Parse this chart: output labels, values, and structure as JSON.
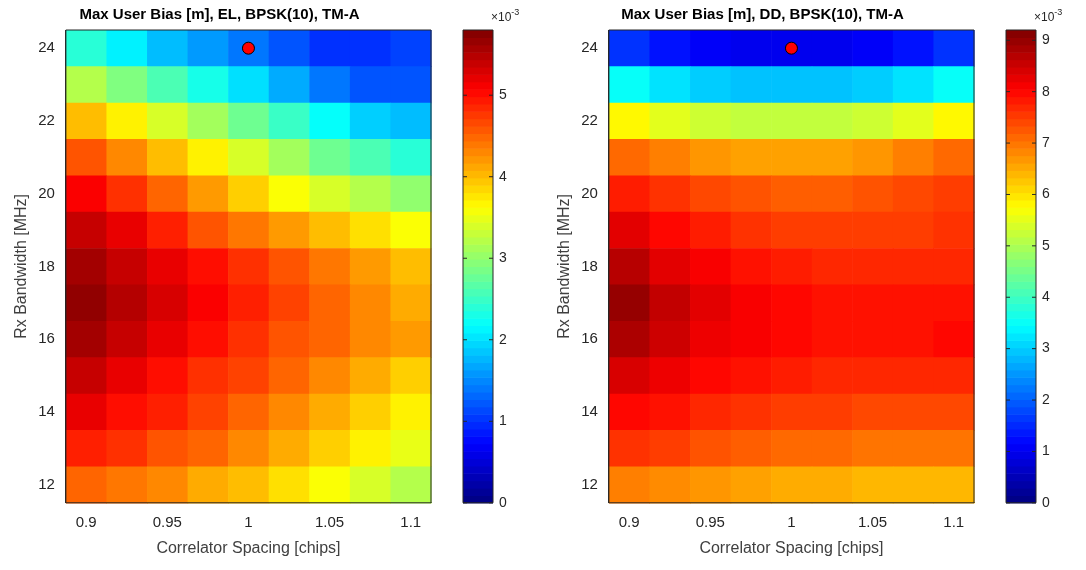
{
  "chart_data": [
    {
      "type": "heatmap",
      "title": "Max User Bias [m], EL, BPSK(10), TM-A",
      "xlabel": "Correlator Spacing [chips]",
      "ylabel": "Rx Bandwidth [MHz]",
      "x": [
        0.9,
        0.925,
        0.95,
        0.975,
        1,
        1.025,
        1.05,
        1.075,
        1.1
      ],
      "y": [
        24,
        23,
        22,
        21,
        20,
        19,
        18,
        17,
        16,
        15,
        14,
        13,
        12
      ],
      "cells": [
        [
          2.4,
          2.1,
          1.8,
          1.6,
          1.4,
          1.2,
          1.0,
          1.0,
          1.1
        ],
        [
          3.2,
          2.9,
          2.6,
          2.3,
          2.0,
          1.7,
          1.4,
          1.2,
          1.2
        ],
        [
          4.0,
          3.7,
          3.4,
          3.1,
          2.8,
          2.5,
          2.2,
          1.9,
          1.8
        ],
        [
          4.6,
          4.3,
          4.0,
          3.7,
          3.4,
          3.1,
          2.8,
          2.6,
          2.4
        ],
        [
          5.1,
          4.8,
          4.5,
          4.2,
          3.9,
          3.6,
          3.4,
          3.2,
          3.0
        ],
        [
          5.4,
          5.2,
          4.9,
          4.6,
          4.4,
          4.2,
          4.0,
          3.8,
          3.6
        ],
        [
          5.6,
          5.4,
          5.2,
          5.0,
          4.8,
          4.6,
          4.4,
          4.2,
          4.0
        ],
        [
          5.7,
          5.5,
          5.3,
          5.1,
          4.9,
          4.7,
          4.5,
          4.3,
          4.1
        ],
        [
          5.6,
          5.4,
          5.2,
          5.0,
          4.8,
          4.6,
          4.5,
          4.3,
          4.2
        ],
        [
          5.4,
          5.2,
          5.0,
          4.8,
          4.7,
          4.5,
          4.3,
          4.1,
          3.9
        ],
        [
          5.2,
          5.0,
          4.9,
          4.7,
          4.5,
          4.3,
          4.1,
          3.9,
          3.7
        ],
        [
          4.9,
          4.8,
          4.6,
          4.5,
          4.3,
          4.1,
          3.9,
          3.7,
          3.5
        ],
        [
          4.5,
          4.4,
          4.3,
          4.1,
          4.0,
          3.8,
          3.6,
          3.4,
          3.2
        ]
      ],
      "xlim": [
        0.8875,
        1.1125
      ],
      "xticks": [
        0.9,
        0.95,
        1,
        1.05,
        1.1
      ],
      "ylim": [
        11.5,
        24.5
      ],
      "yticks": [
        12,
        14,
        16,
        18,
        20,
        22,
        24
      ],
      "clim": [
        0,
        5.8
      ],
      "cticks": [
        0,
        1,
        2,
        3,
        4,
        5
      ],
      "annotations": [
        "×10$^{-3}$"
      ],
      "series": [
        {
          "type": "scatter",
          "x": [
            1
          ],
          "values": [
            24
          ],
          "color": "#ff0000"
        }
      ],
      "marker": "circle"
    },
    {
      "type": "heatmap",
      "title": "Max User Bias [m], DD, BPSK(10), TM-A",
      "xlabel": "Correlator Spacing [chips]",
      "ylabel": "Rx Bandwidth [MHz]",
      "x": [
        0.9,
        0.925,
        0.95,
        0.975,
        1,
        1.025,
        1.05,
        1.075,
        1.1
      ],
      "y": [
        24,
        23,
        22,
        21,
        20,
        19,
        18,
        17,
        16,
        15,
        14,
        13,
        12
      ],
      "cells": [
        [
          1.6,
          1.3,
          1.1,
          1.0,
          1.0,
          1.0,
          1.1,
          1.3,
          1.6
        ],
        [
          3.5,
          3.2,
          3.0,
          2.9,
          2.9,
          2.9,
          3.0,
          3.2,
          3.5
        ],
        [
          5.8,
          5.5,
          5.3,
          5.2,
          5.2,
          5.2,
          5.3,
          5.5,
          5.8
        ],
        [
          7.1,
          6.9,
          6.7,
          6.6,
          6.6,
          6.6,
          6.7,
          6.9,
          7.1
        ],
        [
          7.8,
          7.6,
          7.4,
          7.3,
          7.2,
          7.2,
          7.3,
          7.4,
          7.5
        ],
        [
          8.3,
          8.0,
          7.8,
          7.6,
          7.5,
          7.5,
          7.5,
          7.5,
          7.6
        ],
        [
          8.7,
          8.3,
          8.1,
          7.9,
          7.8,
          7.7,
          7.7,
          7.7,
          7.7
        ],
        [
          9.0,
          8.6,
          8.3,
          8.1,
          8.0,
          7.9,
          7.9,
          7.9,
          7.9
        ],
        [
          8.8,
          8.5,
          8.2,
          8.1,
          8.0,
          7.9,
          7.9,
          7.9,
          8.0
        ],
        [
          8.4,
          8.2,
          8.0,
          7.9,
          7.8,
          7.7,
          7.7,
          7.7,
          7.7
        ],
        [
          8.0,
          7.9,
          7.7,
          7.6,
          7.5,
          7.5,
          7.4,
          7.4,
          7.4
        ],
        [
          7.6,
          7.5,
          7.3,
          7.2,
          7.1,
          7.1,
          7.0,
          7.0,
          7.0
        ],
        [
          6.9,
          6.8,
          6.7,
          6.6,
          6.5,
          6.5,
          6.4,
          6.4,
          6.4
        ]
      ],
      "xlim": [
        0.8875,
        1.1125
      ],
      "xticks": [
        0.9,
        0.95,
        1,
        1.05,
        1.1
      ],
      "ylim": [
        11.5,
        24.5
      ],
      "yticks": [
        12,
        14,
        16,
        18,
        20,
        22,
        24
      ],
      "clim": [
        0,
        9.2
      ],
      "cticks": [
        0,
        1,
        2,
        3,
        4,
        5,
        6,
        7,
        8,
        9
      ],
      "annotations": [
        "×10$^{-3}$"
      ],
      "series": [
        {
          "type": "scatter",
          "x": [
            1
          ],
          "values": [
            24
          ],
          "color": "#ff0000"
        }
      ],
      "marker": "circle"
    }
  ]
}
